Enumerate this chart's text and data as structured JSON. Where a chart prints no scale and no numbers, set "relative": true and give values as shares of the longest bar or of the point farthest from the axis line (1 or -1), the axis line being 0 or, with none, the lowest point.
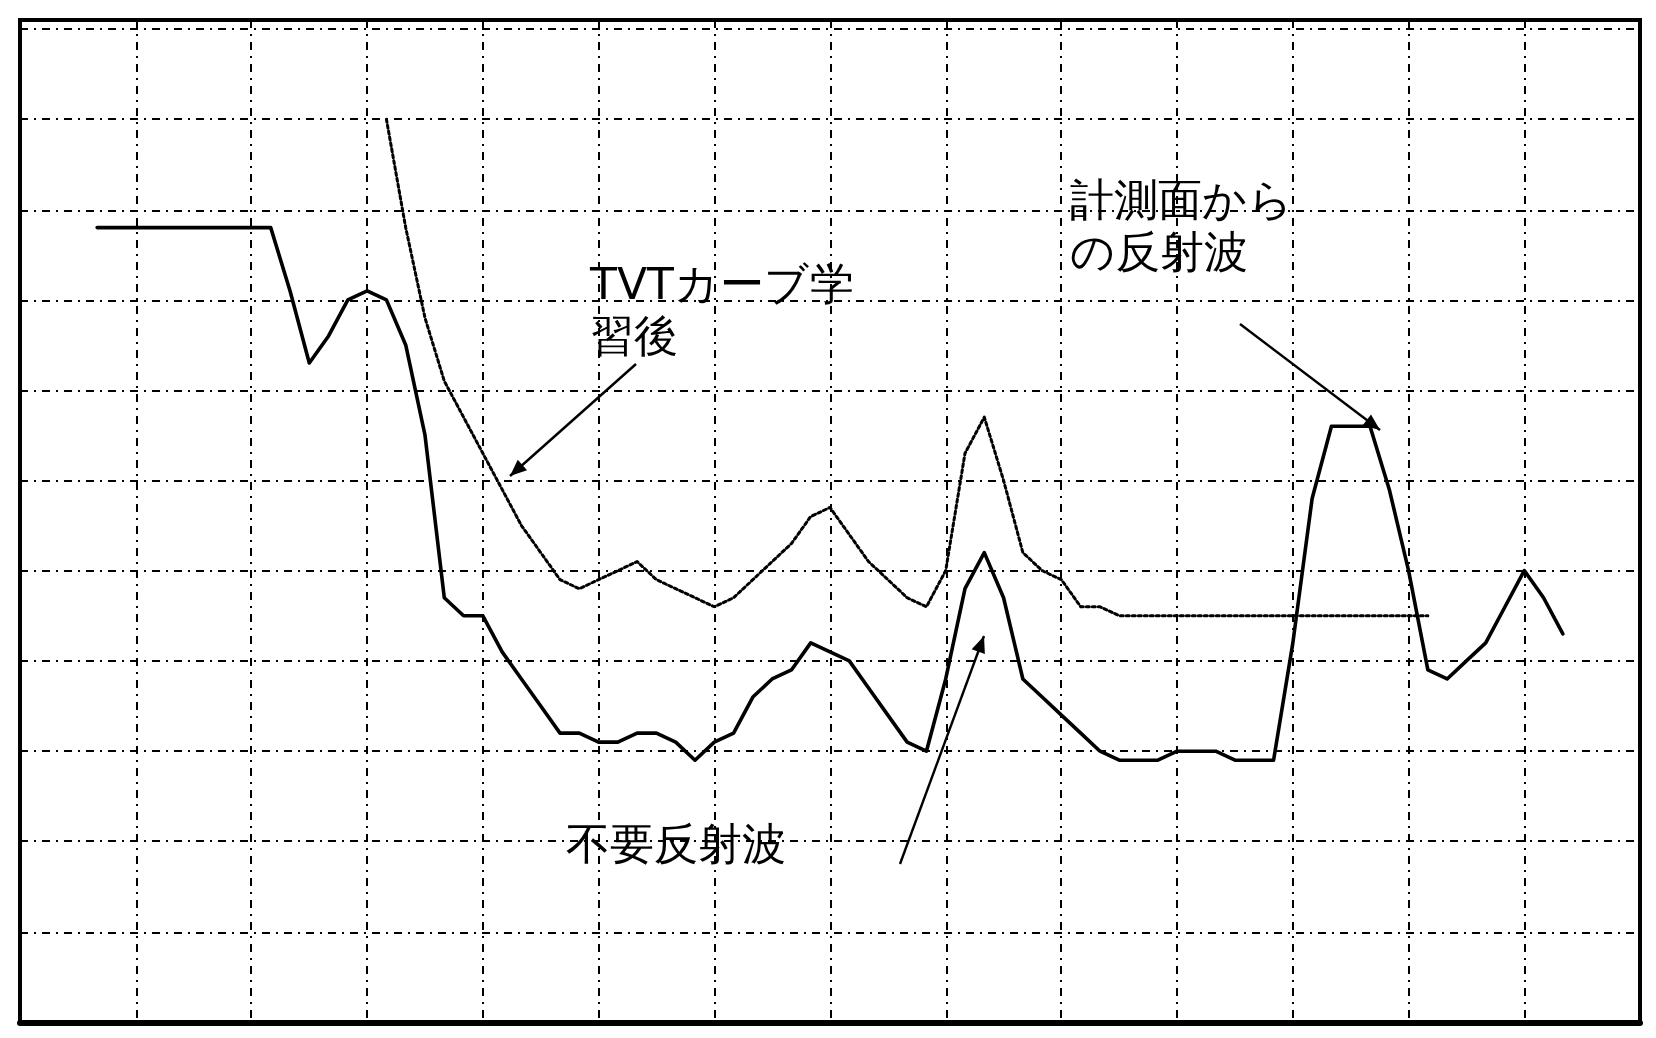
{
  "chart_data": {
    "type": "line",
    "relative": true,
    "grid": true,
    "marker": "none",
    "categories": [
      null,
      null,
      null,
      null,
      null,
      null,
      null,
      null,
      null,
      null,
      null,
      null,
      null,
      null,
      null,
      null,
      null,
      null,
      null,
      null,
      null,
      null,
      null,
      null,
      null,
      null,
      null,
      null,
      null,
      null,
      null,
      null,
      null,
      null,
      null,
      null,
      null,
      null,
      null,
      null,
      null,
      null,
      null,
      null,
      null,
      null,
      null,
      null,
      null,
      null,
      null,
      null,
      null,
      null,
      null,
      null,
      null,
      null,
      null,
      null,
      null,
      null,
      null,
      null,
      null,
      null,
      null,
      null,
      null,
      null,
      null,
      null,
      null,
      null,
      null,
      null,
      null,
      null,
      null,
      null,
      null,
      null,
      null,
      null,
      null
    ],
    "series": [
      {
        "color": "#000000",
        "line_style": "solid",
        "values": [
          null,
          null,
          null,
          null,
          0.88,
          0.88,
          0.88,
          0.88,
          0.88,
          0.88,
          0.88,
          0.88,
          0.88,
          0.88,
          0.81,
          0.73,
          0.76,
          0.8,
          0.81,
          0.8,
          0.75,
          0.65,
          0.47,
          0.45,
          0.45,
          0.41,
          0.38,
          0.35,
          0.32,
          0.32,
          0.31,
          0.31,
          0.32,
          0.32,
          0.31,
          0.29,
          0.31,
          0.32,
          0.36,
          0.38,
          0.39,
          0.42,
          0.41,
          0.4,
          0.37,
          0.34,
          0.31,
          0.3,
          0.38,
          0.48,
          0.52,
          0.47,
          0.38,
          0.36,
          0.34,
          0.32,
          0.3,
          0.29,
          0.29,
          0.29,
          0.3,
          0.3,
          0.3,
          0.29,
          0.29,
          0.29,
          0.42,
          0.58,
          0.66,
          0.66,
          0.66,
          0.59,
          0.5,
          0.39,
          0.38,
          0.4,
          0.42,
          0.46,
          0.5,
          0.47,
          0.43,
          null,
          null,
          null,
          null
        ]
      },
      {
        "color": "#000000",
        "line_style": "dotted",
        "values": [
          null,
          null,
          null,
          null,
          null,
          null,
          null,
          null,
          null,
          null,
          null,
          null,
          null,
          null,
          null,
          null,
          null,
          null,
          null,
          1,
          0.88,
          0.78,
          0.71,
          0.67,
          0.63,
          0.59,
          0.55,
          0.52,
          0.49,
          0.48,
          0.49,
          0.5,
          0.51,
          0.49,
          0.48,
          0.47,
          0.46,
          0.47,
          0.49,
          0.51,
          0.53,
          0.56,
          0.57,
          0.54,
          0.51,
          0.49,
          0.47,
          0.46,
          0.5,
          0.63,
          0.67,
          0.6,
          0.52,
          0.5,
          0.49,
          0.46,
          0.46,
          0.45,
          0.45,
          0.45,
          0.45,
          0.45,
          0.45,
          0.45,
          0.45,
          0.45,
          0.45,
          0.45,
          0.45,
          0.45,
          0.45,
          0.45,
          0.45,
          0.45,
          null,
          null,
          null,
          null,
          null,
          null,
          null,
          null,
          null,
          null,
          null
        ]
      }
    ],
    "annotations": [
      "TVTカーブ学習後",
      "計測面からの反射波",
      "不要反射波"
    ]
  }
}
